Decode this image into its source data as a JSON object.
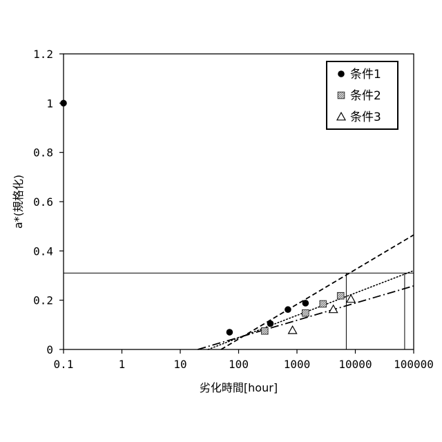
{
  "chart_data": {
    "type": "scatter",
    "xlabel": "劣化時間[hour]",
    "ylabel": "a*(規格化)",
    "xscale": "log",
    "xlim": [
      0.1,
      100000
    ],
    "ylim": [
      0,
      1.2
    ],
    "x_ticks": [
      0.1,
      1,
      10,
      100,
      1000,
      10000,
      100000
    ],
    "x_tick_labels": [
      "0.1",
      "1",
      "10",
      "100",
      "1000",
      "10000",
      "100000"
    ],
    "y_ticks": [
      0,
      0.2,
      0.4,
      0.6,
      0.8,
      1,
      1.2
    ],
    "y_tick_labels": [
      "0",
      "0.2",
      "0.4",
      "0.6",
      "0.8",
      "1",
      "1.2"
    ],
    "grid": false,
    "legend_position": "top-right",
    "series": [
      {
        "name": "条件1",
        "marker": "filled-circle",
        "color": "#000000",
        "points": [
          [
            0.1,
            1.0
          ],
          [
            70,
            0.07
          ],
          [
            350,
            0.105
          ],
          [
            700,
            0.162
          ],
          [
            1400,
            0.188
          ]
        ],
        "fit": {
          "style": "dashed",
          "x": [
            50,
            100000
          ],
          "y": [
            0.0,
            0.465
          ]
        }
      },
      {
        "name": "条件2",
        "marker": "hatched-square",
        "color": "#6f6f6f",
        "points": [
          [
            280,
            0.075
          ],
          [
            1400,
            0.148
          ],
          [
            2800,
            0.185
          ],
          [
            5600,
            0.218
          ]
        ],
        "fit": {
          "style": "dotted",
          "x": [
            30,
            100000
          ],
          "y": [
            0.0,
            0.32
          ]
        }
      },
      {
        "name": "条件3",
        "marker": "open-triangle",
        "color": "#000000",
        "points": [
          [
            840,
            0.078
          ],
          [
            4200,
            0.163
          ],
          [
            8400,
            0.205
          ]
        ],
        "fit": {
          "style": "dash-dot",
          "x": [
            20,
            100000
          ],
          "y": [
            0.0,
            0.258
          ]
        }
      }
    ],
    "threshold": {
      "y": 0.31,
      "x_crossings": [
        7000,
        70000
      ]
    }
  }
}
